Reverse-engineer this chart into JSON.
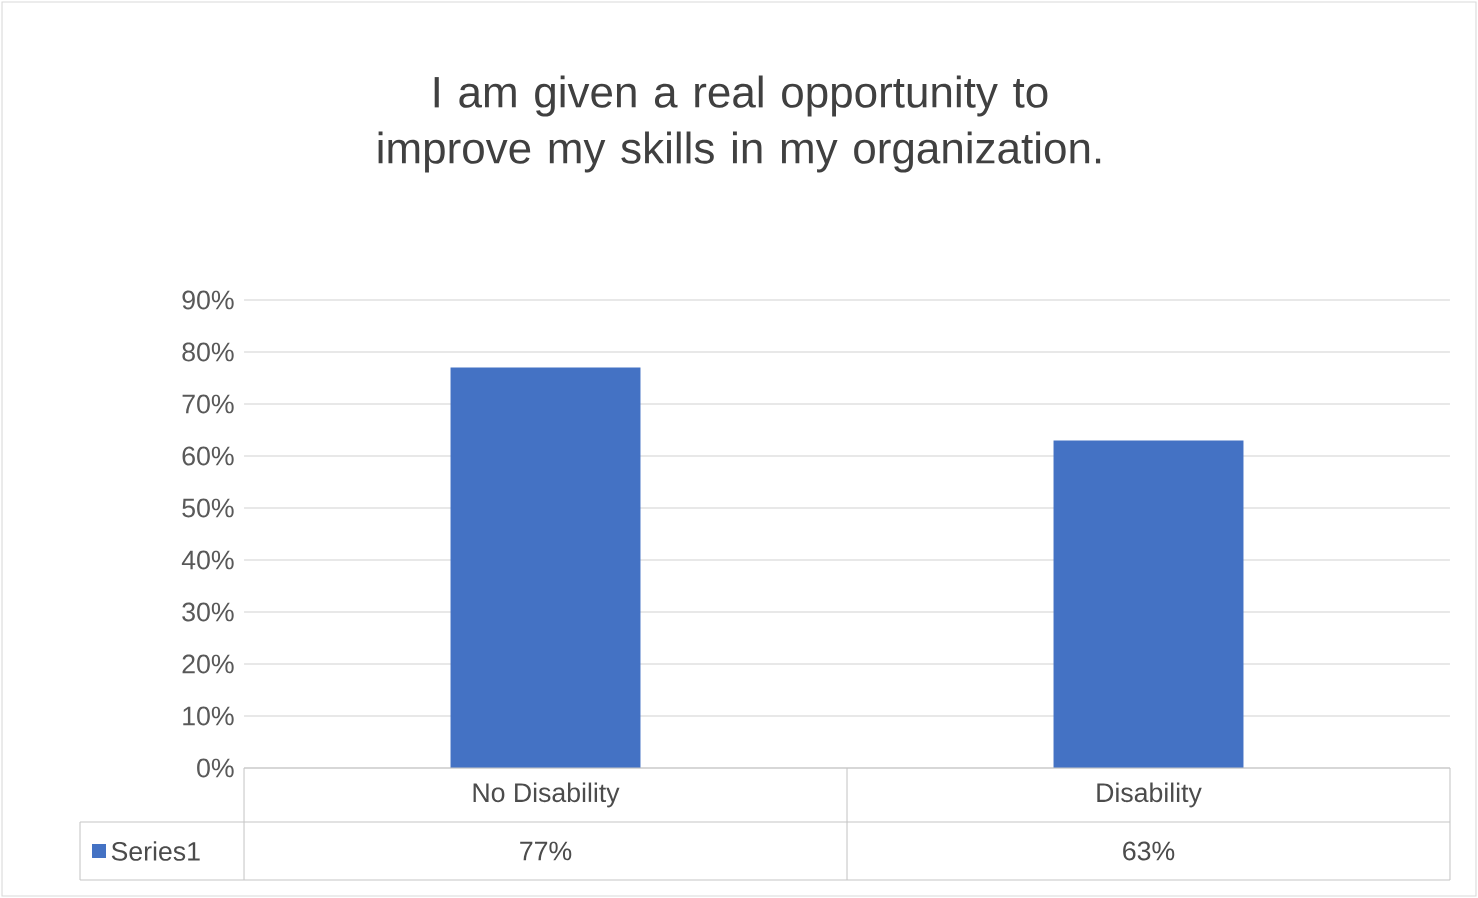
{
  "chart_data": {
    "type": "bar",
    "title": "I am given a real opportunity to improve my skills in my organization.",
    "categories": [
      "No Disability",
      "Disability"
    ],
    "series": [
      {
        "name": "Series1",
        "color": "#4472c4",
        "values": [
          77,
          63
        ],
        "value_labels": [
          "77%",
          "63%"
        ]
      }
    ],
    "ylim": [
      0,
      90
    ],
    "yticks": [
      {
        "value": 0,
        "label": "0%"
      },
      {
        "value": 10,
        "label": "10%"
      },
      {
        "value": 20,
        "label": "20%"
      },
      {
        "value": 30,
        "label": "30%"
      },
      {
        "value": 40,
        "label": "40%"
      },
      {
        "value": 50,
        "label": "50%"
      },
      {
        "value": 60,
        "label": "60%"
      },
      {
        "value": 70,
        "label": "70%"
      },
      {
        "value": 80,
        "label": "80%"
      },
      {
        "value": 90,
        "label": "90%"
      }
    ],
    "grid": "y"
  }
}
